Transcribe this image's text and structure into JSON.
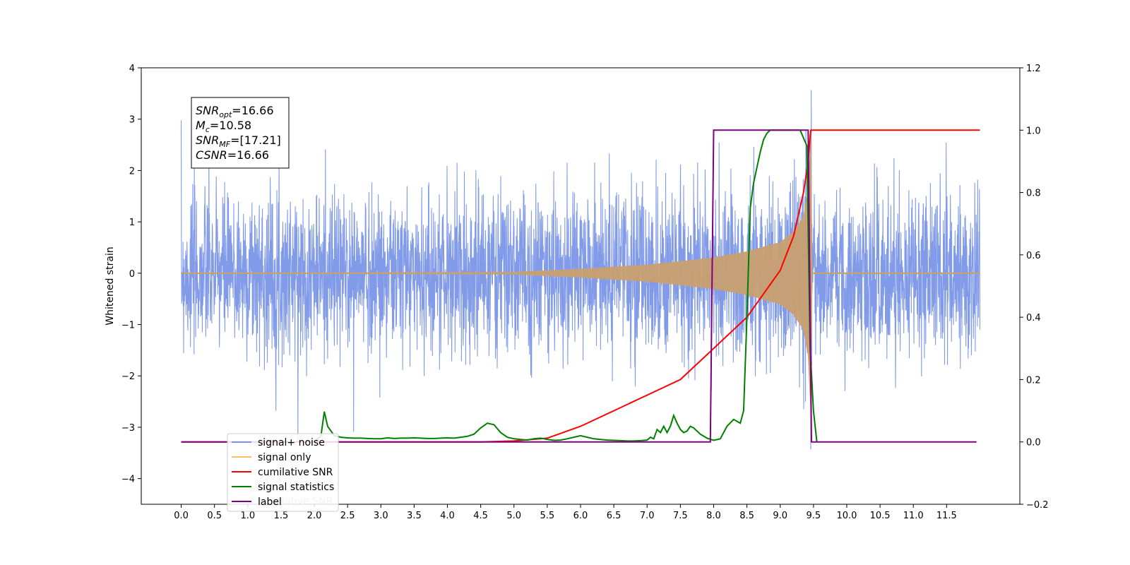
{
  "chart_data": {
    "type": "line",
    "ylabel": "Whitened strain",
    "xlim": [
      -0.6,
      12.6
    ],
    "ylim": [
      -4.5,
      4.0
    ],
    "y2lim": [
      -0.2,
      1.2
    ],
    "x_ticks": [
      0.0,
      0.5,
      1.0,
      1.5,
      2.0,
      2.5,
      3.0,
      3.5,
      4.0,
      4.5,
      5.0,
      5.5,
      6.0,
      6.5,
      7.0,
      7.5,
      8.0,
      8.5,
      9.0,
      9.5,
      10.0,
      10.5,
      11.0,
      11.5
    ],
    "x_tick_labels": [
      "0.0",
      "0.5",
      "1.0",
      "1.5",
      "2.0",
      "2.5",
      "3.0",
      "3.5",
      "4.0",
      "4.5",
      "5.0",
      "5.5",
      "6.0",
      "6.5",
      "7.0",
      "7.5",
      "8.0",
      "8.5",
      "9.0",
      "9.5",
      "10.0",
      "10.5",
      "11.0",
      "11.5"
    ],
    "y_ticks": [
      -4,
      -3,
      -2,
      -1,
      0,
      1,
      2,
      3,
      4
    ],
    "y_tick_labels": [
      "−4",
      "−3",
      "−2",
      "−1",
      "0",
      "1",
      "2",
      "3",
      "4"
    ],
    "y2_ticks": [
      -0.2,
      0.0,
      0.2,
      0.4,
      0.6,
      0.8,
      1.0,
      1.2
    ],
    "y2_tick_labels": [
      "−0.2",
      "0.0",
      "0.2",
      "0.4",
      "0.6",
      "0.8",
      "1.0",
      "1.2"
    ],
    "annotation": [
      {
        "sym": "SNR",
        "sub": "opt",
        "value": "=16.66"
      },
      {
        "sym": "M",
        "sub": "c",
        "value": "=10.58"
      },
      {
        "sym": "SNR",
        "sub": "MF",
        "value": "=[17.21]"
      },
      {
        "sym": "CSNR",
        "sub": "",
        "value": "=16.66"
      }
    ],
    "legend_position": "lower-left",
    "legend": [
      {
        "label": "signal+ noise",
        "color": "#7b96e8"
      },
      {
        "label": "signal only",
        "color": "#ffbf66"
      },
      {
        "label": "cumilative SNR",
        "color": "#ff0000"
      },
      {
        "label": "signal statistics",
        "color": "#008000"
      },
      {
        "label": "label",
        "color": "#800080"
      }
    ],
    "hidden_legend_text": "cumilative SNR",
    "series": [
      {
        "name": "signal+ noise",
        "axis": "left",
        "color": "#7b96e8",
        "x_range": [
          0.0,
          12.0
        ],
        "amplitude_typical": 1.3,
        "amplitude_peak": 3.6
      },
      {
        "name": "signal only",
        "axis": "left",
        "color": "#c8a070",
        "x_range": [
          0.0,
          12.0
        ],
        "envelope": {
          "x": [
            0.0,
            5.0,
            6.0,
            7.0,
            8.0,
            8.5,
            9.0,
            9.2,
            9.35,
            9.42,
            9.46,
            9.48,
            12.0
          ],
          "y": [
            0.0,
            0.02,
            0.08,
            0.16,
            0.3,
            0.42,
            0.6,
            0.8,
            1.1,
            1.6,
            2.7,
            0.0,
            0.0
          ]
        }
      },
      {
        "name": "cumilative SNR",
        "axis": "right",
        "color": "#ff0000",
        "x": [
          0.0,
          4.5,
          5.0,
          5.5,
          6.0,
          6.5,
          7.0,
          7.5,
          8.0,
          8.5,
          9.0,
          9.2,
          9.35,
          9.42,
          9.45,
          9.46,
          9.48,
          12.0
        ],
        "y": [
          0.0,
          0.0,
          0.003,
          0.012,
          0.05,
          0.1,
          0.15,
          0.2,
          0.3,
          0.4,
          0.55,
          0.66,
          0.8,
          0.9,
          0.98,
          1.0,
          1.0,
          1.0
        ]
      },
      {
        "name": "signal statistics",
        "axis": "right",
        "color": "#008000",
        "x": [
          2.0,
          2.1,
          2.15,
          2.2,
          2.3,
          2.4,
          2.5,
          2.6,
          2.7,
          2.8,
          2.9,
          3.0,
          3.1,
          3.2,
          3.3,
          3.4,
          3.5,
          3.6,
          3.7,
          3.8,
          3.9,
          4.0,
          4.1,
          4.2,
          4.3,
          4.4,
          4.5,
          4.6,
          4.7,
          4.8,
          4.9,
          5.0,
          5.1,
          5.2,
          5.3,
          5.4,
          5.5,
          5.6,
          5.7,
          5.8,
          5.9,
          6.0,
          6.1,
          6.2,
          6.3,
          6.4,
          6.5,
          6.6,
          6.7,
          6.8,
          6.9,
          7.0,
          7.05,
          7.1,
          7.15,
          7.2,
          7.25,
          7.3,
          7.35,
          7.4,
          7.45,
          7.5,
          7.55,
          7.6,
          7.65,
          7.7,
          7.8,
          7.9,
          8.0,
          8.1,
          8.2,
          8.3,
          8.4,
          8.45,
          8.5,
          8.55,
          8.6,
          8.65,
          8.7,
          8.75,
          8.8,
          8.85,
          8.9,
          8.95,
          9.0,
          9.1,
          9.2,
          9.3,
          9.4,
          9.45,
          9.5,
          9.55
        ],
        "y": [
          0.0,
          0.02,
          0.097,
          0.05,
          0.02,
          0.015,
          0.013,
          0.012,
          0.012,
          0.011,
          0.01,
          0.01,
          0.013,
          0.011,
          0.012,
          0.012,
          0.013,
          0.012,
          0.011,
          0.011,
          0.012,
          0.013,
          0.012,
          0.015,
          0.018,
          0.025,
          0.045,
          0.06,
          0.055,
          0.03,
          0.015,
          0.01,
          0.008,
          0.006,
          0.01,
          0.012,
          0.008,
          0.005,
          0.006,
          0.01,
          0.015,
          0.02,
          0.015,
          0.01,
          0.008,
          0.006,
          0.005,
          0.004,
          0.003,
          0.003,
          0.004,
          0.006,
          0.015,
          0.01,
          0.04,
          0.03,
          0.05,
          0.03,
          0.05,
          0.085,
          0.06,
          0.04,
          0.03,
          0.035,
          0.05,
          0.045,
          0.025,
          0.012,
          0.005,
          0.01,
          0.05,
          0.072,
          0.06,
          0.1,
          0.4,
          0.75,
          0.83,
          0.88,
          0.93,
          0.97,
          0.99,
          1.0,
          1.0,
          1.0,
          1.0,
          1.0,
          1.0,
          1.0,
          0.95,
          0.3,
          0.1,
          0.0
        ]
      },
      {
        "name": "label",
        "axis": "right",
        "color": "#800080",
        "x": [
          0.0,
          7.95,
          8.0,
          9.42,
          9.47,
          11.95
        ],
        "y": [
          0.0,
          0.0,
          1.0,
          1.0,
          0.0,
          0.0
        ]
      }
    ]
  }
}
